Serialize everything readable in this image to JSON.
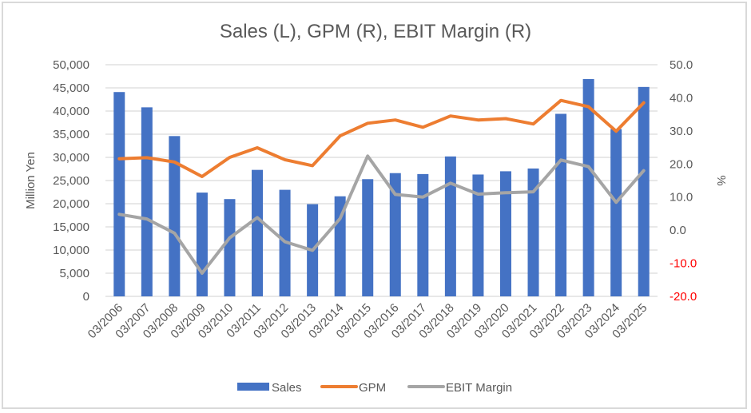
{
  "chart_data": {
    "type": "bar",
    "title": "Sales (L), GPM (R), EBIT Margin (R)",
    "xlabel": "",
    "ylabel": "Million Yen",
    "y2label": "%",
    "categories": [
      "03/2006",
      "03/2007",
      "03/2008",
      "03/2009",
      "03/2010",
      "03/2011",
      "03/2012",
      "03/2013",
      "03/2014",
      "03/2015",
      "03/2016",
      "03/2017",
      "03/2018",
      "03/2019",
      "03/2020",
      "03/2021",
      "03/2022",
      "03/2023",
      "03/2024",
      "03/2025"
    ],
    "ylim": [
      0,
      50000
    ],
    "y2lim": [
      -20,
      50
    ],
    "yticks": [
      "0",
      "5,000",
      "10,000",
      "15,000",
      "20,000",
      "25,000",
      "30,000",
      "35,000",
      "40,000",
      "45,000",
      "50,000"
    ],
    "ytick_values": [
      0,
      5000,
      10000,
      15000,
      20000,
      25000,
      30000,
      35000,
      40000,
      45000,
      50000
    ],
    "y2ticks": [
      "-20.0",
      "-10.0",
      "0.0",
      "10.0",
      "20.0",
      "30.0",
      "40.0",
      "50.0"
    ],
    "y2tick_values": [
      -20,
      -10,
      0,
      10,
      20,
      30,
      40,
      50
    ],
    "negative_tick_color": "#ff0000",
    "grid": true,
    "legend_position": "bottom",
    "series": [
      {
        "name": "Sales",
        "type": "bar",
        "axis": "left",
        "color": "#4472c4",
        "values": [
          44100,
          40800,
          34600,
          22400,
          21000,
          27300,
          23000,
          19900,
          21600,
          25300,
          26600,
          26400,
          30200,
          26300,
          27000,
          27600,
          39400,
          46900,
          36100,
          45200
        ]
      },
      {
        "name": "GPM",
        "type": "line",
        "axis": "right",
        "color": "#ed7d31",
        "values": [
          21.6,
          21.9,
          20.6,
          16.2,
          22.0,
          24.9,
          21.3,
          19.5,
          28.5,
          32.3,
          33.3,
          31.1,
          34.5,
          33.3,
          33.7,
          32.1,
          39.2,
          37.3,
          29.9,
          38.5
        ]
      },
      {
        "name": "EBIT Margin",
        "type": "line",
        "axis": "right",
        "color": "#a5a5a5",
        "values": [
          4.8,
          3.4,
          -0.9,
          -13.0,
          -2.3,
          3.8,
          -3.5,
          -6.1,
          3.5,
          22.4,
          10.8,
          10.0,
          14.2,
          10.9,
          11.3,
          11.6,
          21.2,
          19.2,
          8.4,
          18.0
        ]
      }
    ]
  }
}
